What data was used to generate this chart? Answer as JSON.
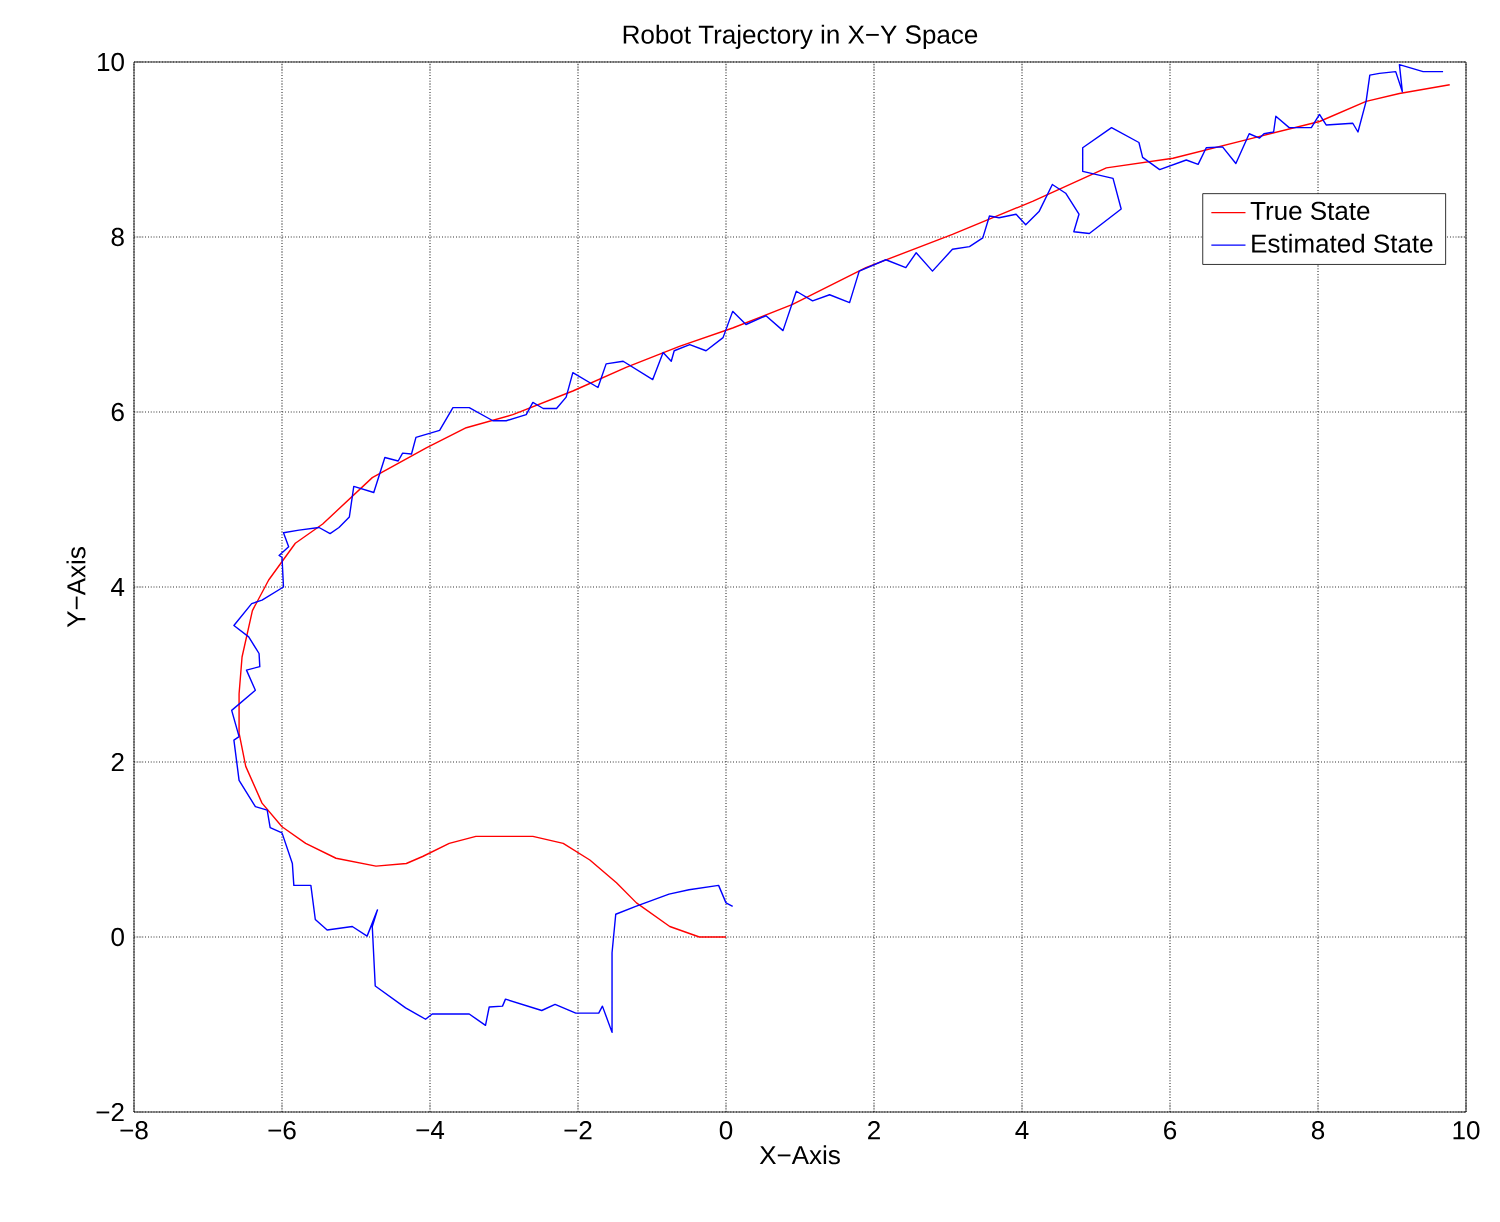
{
  "chart_data": {
    "type": "line",
    "title": "Robot Trajectory in X−Y Space",
    "xlabel": "X−Axis",
    "ylabel": "Y−Axis",
    "xlim": [
      -8,
      10
    ],
    "ylim": [
      -2,
      10
    ],
    "xticks": [
      {
        "value": -8,
        "label": "−8"
      },
      {
        "value": -6,
        "label": "−6"
      },
      {
        "value": -4,
        "label": "−4"
      },
      {
        "value": -2,
        "label": "−2"
      },
      0,
      2,
      4,
      6,
      8,
      10
    ],
    "yticks": [
      {
        "value": -2,
        "label": "−2"
      },
      0,
      2,
      4,
      6,
      8,
      10
    ],
    "grid": true,
    "legend": "top right",
    "marker": "none",
    "line_style": "solid",
    "series": [
      {
        "name": "True State",
        "color": "#ff0000",
        "x": [
          0,
          -0.36,
          -0.76,
          -1.21,
          -1.48,
          -1.84,
          -2.2,
          -2.61,
          -3.38,
          -3.74,
          -4.1,
          -4.32,
          -4.73,
          -5.27,
          -5.68,
          -6,
          -6.27,
          -6.49,
          -6.58,
          -6.58,
          -6.54,
          -6.4,
          -6.18,
          -5.82,
          -5.45,
          -4.78,
          -4.05,
          -3.51,
          -2.88,
          -2.07,
          -1.35,
          -0.63,
          0.09,
          0.9,
          1.89,
          3.06,
          4.15,
          5.14,
          6.04,
          7.12,
          8.02,
          8.65,
          9.1,
          9.78
        ],
        "values": [
          0,
          0,
          0.12,
          0.39,
          0.62,
          0.88,
          1.07,
          1.15,
          1.15,
          1.07,
          0.92,
          0.84,
          0.81,
          0.9,
          1.07,
          1.26,
          1.53,
          1.95,
          2.33,
          2.78,
          3.2,
          3.73,
          4.08,
          4.5,
          4.72,
          5.25,
          5.59,
          5.82,
          5.97,
          6.24,
          6.51,
          6.75,
          6.96,
          7.23,
          7.65,
          8.03,
          8.41,
          8.79,
          8.9,
          9.13,
          9.32,
          9.55,
          9.64,
          9.74
        ]
      },
      {
        "name": "Estimated State",
        "color": "#0000ff",
        "x": [
          0.09,
          0,
          -0.1,
          -0.5,
          -0.77,
          -1.22,
          -1.49,
          -1.54,
          -1.54,
          -1.67,
          -1.72,
          -2.03,
          -2.31,
          -2.49,
          -2.98,
          -3.02,
          -3.2,
          -3.25,
          -3.47,
          -3.97,
          -4.06,
          -4.33,
          -4.74,
          -4.78,
          -4.71,
          -4.85,
          -5.05,
          -5.39,
          -5.55,
          -5.61,
          -5.84,
          -5.86,
          -6,
          -6.16,
          -6.2,
          -6.36,
          -6.58,
          -6.65,
          -6.58,
          -6.68,
          -6.36,
          -6.48,
          -6.3,
          -6.31,
          -6.45,
          -6.65,
          -6.41,
          -6.27,
          -5.98,
          -6,
          -6.04,
          -5.91,
          -5.98,
          -5.77,
          -5.5,
          -5.35,
          -5.23,
          -5.09,
          -5.03,
          -4.76,
          -4.61,
          -4.43,
          -4.37,
          -4.25,
          -4.19,
          -3.87,
          -3.69,
          -3.47,
          -3.15,
          -2.97,
          -2.7,
          -2.61,
          -2.47,
          -2.29,
          -2.16,
          -2.07,
          -1.73,
          -1.62,
          -1.39,
          -0.99,
          -0.85,
          -0.74,
          -0.7,
          -0.49,
          -0.27,
          -0.04,
          0.09,
          0.27,
          0.54,
          0.77,
          0.95,
          1.17,
          1.4,
          1.67,
          1.8,
          2.16,
          2.43,
          2.57,
          2.79,
          3.06,
          3.29,
          3.47,
          3.56,
          3.69,
          3.92,
          4.05,
          4.23,
          4.41,
          4.59,
          4.77,
          4.7,
          4.91,
          5.34,
          5.23,
          4.82,
          4.82,
          5.21,
          5.58,
          5.63,
          5.86,
          6.22,
          6.38,
          6.49,
          6.71,
          6.89,
          7.07,
          7.21,
          7.27,
          7.4,
          7.43,
          7.61,
          7.91,
          8.02,
          8.11,
          8.47,
          8.54,
          8.65,
          8.7,
          8.83,
          9.05,
          9.14,
          9.1,
          9.42,
          9.69
        ],
        "values": [
          0.35,
          0.39,
          0.59,
          0.54,
          0.49,
          0.35,
          0.26,
          -0.18,
          -1.09,
          -0.79,
          -0.87,
          -0.87,
          -0.77,
          -0.84,
          -0.71,
          -0.79,
          -0.8,
          -1.01,
          -0.88,
          -0.88,
          -0.94,
          -0.81,
          -0.56,
          0.12,
          0.31,
          0.01,
          0.12,
          0.08,
          0.2,
          0.59,
          0.59,
          0.84,
          1.19,
          1.25,
          1.45,
          1.49,
          1.79,
          2.25,
          2.29,
          2.59,
          2.82,
          3.05,
          3.09,
          3.24,
          3.43,
          3.56,
          3.81,
          3.85,
          4,
          4.34,
          4.36,
          4.46,
          4.62,
          4.65,
          4.68,
          4.61,
          4.68,
          4.8,
          5.15,
          5.08,
          5.48,
          5.44,
          5.53,
          5.52,
          5.71,
          5.79,
          6.05,
          6.05,
          5.9,
          5.9,
          5.97,
          6.11,
          6.04,
          6.04,
          6.17,
          6.45,
          6.28,
          6.55,
          6.58,
          6.37,
          6.68,
          6.58,
          6.7,
          6.77,
          6.7,
          6.85,
          7.15,
          7,
          7.1,
          6.93,
          7.38,
          7.27,
          7.34,
          7.25,
          7.61,
          7.74,
          7.65,
          7.82,
          7.61,
          7.86,
          7.89,
          7.99,
          8.24,
          8.22,
          8.26,
          8.14,
          8.29,
          8.6,
          8.5,
          8.26,
          8.06,
          8.04,
          8.32,
          8.67,
          8.75,
          9.02,
          9.25,
          9.08,
          8.91,
          8.77,
          8.88,
          8.83,
          9.02,
          9.03,
          8.84,
          9.18,
          9.13,
          9.18,
          9.2,
          9.38,
          9.25,
          9.25,
          9.4,
          9.28,
          9.3,
          9.2,
          9.55,
          9.85,
          9.87,
          9.89,
          9.66,
          9.97,
          9.89,
          9.89
        ]
      }
    ]
  }
}
